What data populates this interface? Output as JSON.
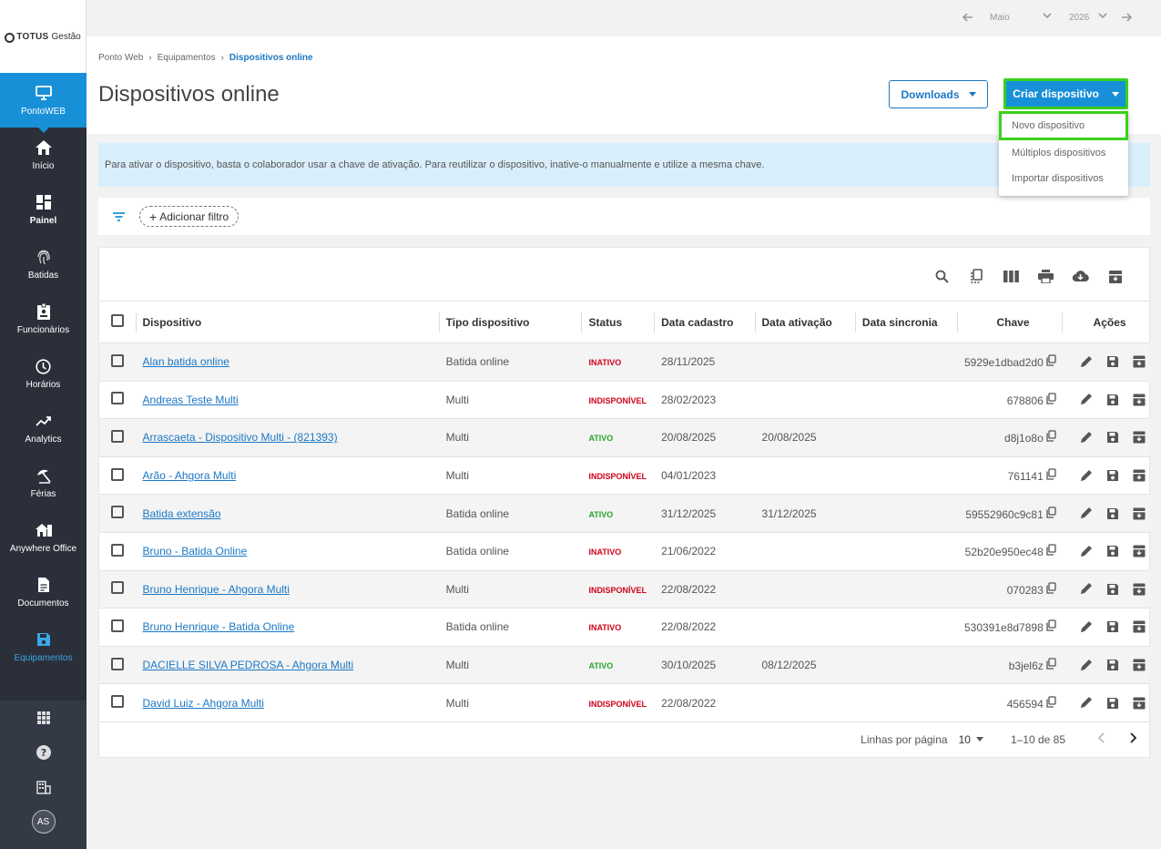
{
  "brand": {
    "name": "TOTUS",
    "suffix": "Gestão"
  },
  "sidebar": {
    "items": [
      {
        "label": "PontoWEB",
        "icon": "monitor-icon"
      },
      {
        "label": "Início",
        "icon": "home-icon"
      },
      {
        "label": "Painel",
        "icon": "dashboard-icon"
      },
      {
        "label": "Batidas",
        "icon": "fingerprint-icon"
      },
      {
        "label": "Funcionários",
        "icon": "badge-icon"
      },
      {
        "label": "Horários",
        "icon": "clock-icon"
      },
      {
        "label": "Analytics",
        "icon": "trend-icon"
      },
      {
        "label": "Férias",
        "icon": "beach-umbrella-icon"
      },
      {
        "label": "Anywhere Office",
        "icon": "home-office-icon"
      },
      {
        "label": "Documentos",
        "icon": "document-icon"
      },
      {
        "label": "Equipamentos",
        "icon": "save-device-icon"
      }
    ],
    "avatar_initials": "AS"
  },
  "topbar": {
    "month": "Maio",
    "year": "2026"
  },
  "breadcrumb": {
    "items": [
      "Ponto Web",
      "Equipamentos",
      "Dispositivos online"
    ]
  },
  "page": {
    "title": "Dispositivos online",
    "downloads_label": "Downloads",
    "create_label": "Criar dispositivo"
  },
  "create_menu": {
    "options": [
      "Novo dispositivo",
      "Múltiplos dispositivos",
      "Importar dispositivos"
    ]
  },
  "info_text": "Para ativar o dispositivo, basta o colaborador usar a chave de ativação. Para reutilizar o dispositivo, inative-o manualmente e utilize a mesma chave.",
  "filter": {
    "add_label": "Adicionar filtro"
  },
  "table": {
    "columns": [
      "Dispositivo",
      "Tipo dispositivo",
      "Status",
      "Data cadastro",
      "Data ativação",
      "Data sincronia",
      "Chave",
      "Ações"
    ],
    "rows": [
      {
        "dispositivo": "Alan batida online",
        "tipo": "Batida online",
        "status": "INATIVO",
        "cadastro": "28/11/2025",
        "ativacao": "",
        "sincronia": "",
        "chave": "5929e1dbad2d0"
      },
      {
        "dispositivo": "Andreas Teste Multi",
        "tipo": "Multi",
        "status": "INDISPONÍVEL",
        "cadastro": "28/02/2023",
        "ativacao": "",
        "sincronia": "",
        "chave": "678806"
      },
      {
        "dispositivo": "Arrascaeta - Dispositivo Multi - (821393)",
        "tipo": "Multi",
        "status": "ATIVO",
        "cadastro": "20/08/2025",
        "ativacao": "20/08/2025",
        "sincronia": "",
        "chave": "d8j1o8o"
      },
      {
        "dispositivo": "Arão - Ahgora Multi",
        "tipo": "Multi",
        "status": "INDISPONÍVEL",
        "cadastro": "04/01/2023",
        "ativacao": "",
        "sincronia": "",
        "chave": "761141"
      },
      {
        "dispositivo": "Batida extensão",
        "tipo": "Batida online",
        "status": "ATIVO",
        "cadastro": "31/12/2025",
        "ativacao": "31/12/2025",
        "sincronia": "",
        "chave": "59552960c9c81"
      },
      {
        "dispositivo": "Bruno - Batida Online",
        "tipo": "Batida online",
        "status": "INATIVO",
        "cadastro": "21/06/2022",
        "ativacao": "",
        "sincronia": "",
        "chave": "52b20e950ec48"
      },
      {
        "dispositivo": "Bruno Henrique - Ahgora Multi",
        "tipo": "Multi",
        "status": "INDISPONÍVEL",
        "cadastro": "22/08/2022",
        "ativacao": "",
        "sincronia": "",
        "chave": "070283"
      },
      {
        "dispositivo": "Bruno Henrique - Batida Online",
        "tipo": "Batida online",
        "status": "INATIVO",
        "cadastro": "22/08/2022",
        "ativacao": "",
        "sincronia": "",
        "chave": "530391e8d7898"
      },
      {
        "dispositivo": "DACIELLE SILVA PEDROSA - Ahgora Multi",
        "tipo": "Multi",
        "status": "ATIVO",
        "cadastro": "30/10/2025",
        "ativacao": "08/12/2025",
        "sincronia": "",
        "chave": "b3jel6z"
      },
      {
        "dispositivo": "David Luiz - Ahgora Multi",
        "tipo": "Multi",
        "status": "INDISPONÍVEL",
        "cadastro": "22/08/2022",
        "ativacao": "",
        "sincronia": "",
        "chave": "456594"
      }
    ]
  },
  "pager": {
    "rows_label": "Linhas por página",
    "rows_value": "10",
    "range": "1–10 de 85"
  },
  "colors": {
    "primary": "#1890d8",
    "highlight": "#39d21a",
    "sidebar": "#2b2f3a",
    "inactive": "#d0021b",
    "active": "#2aa52a"
  }
}
